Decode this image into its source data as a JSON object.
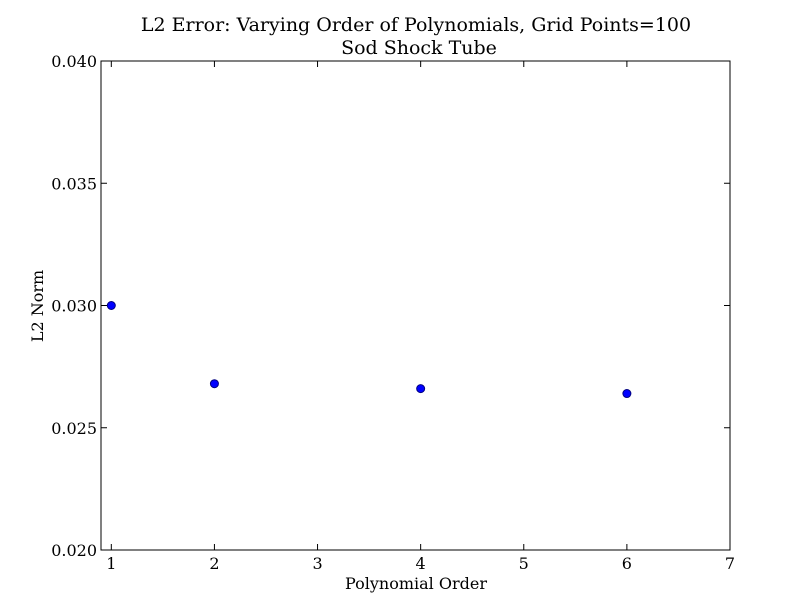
{
  "chart_data": {
    "type": "scatter",
    "title": "L2 Error: Varying Order of Polynomials,  Grid Points=100",
    "subtitle": "Sod Shock Tube",
    "xlabel": "Polynomial Order",
    "ylabel": "L2 Norm",
    "xlim": [
      0.9,
      7
    ],
    "ylim": [
      0.02,
      0.04
    ],
    "xticks": [
      1,
      2,
      3,
      4,
      5,
      6,
      7
    ],
    "xtick_labels": [
      "1",
      "2",
      "3",
      "4",
      "5",
      "6",
      "7"
    ],
    "yticks": [
      0.02,
      0.025,
      0.03,
      0.035,
      0.04
    ],
    "ytick_labels": [
      "0.020",
      "0.025",
      "0.030",
      "0.035",
      "0.040"
    ],
    "grid": false,
    "marker_color": "#0000ff",
    "x": [
      1,
      2,
      4,
      6
    ],
    "y": [
      0.03,
      0.0268,
      0.0266,
      0.0264
    ]
  }
}
